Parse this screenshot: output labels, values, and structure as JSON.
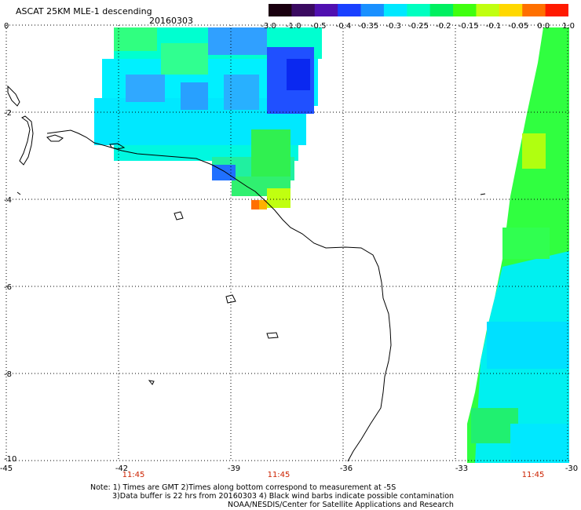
{
  "header": {
    "title": "ASCAT 25KM MLE-1 descending",
    "date": "20160303"
  },
  "colorbar": {
    "labels": [
      "-3.0",
      "-1.0",
      "-0.5",
      "-0.4",
      "-0.35",
      "-0.3",
      "-0.25",
      "-0.2",
      "-0.15",
      "-0.1",
      "-0.05",
      "0.0",
      "1.0"
    ],
    "colors": [
      "#1a0010",
      "#3a0a60",
      "#5010b0",
      "#1a40ff",
      "#1a90ff",
      "#00e8ff",
      "#00ffc0",
      "#00f060",
      "#40ff10",
      "#c0ff10",
      "#ffd800",
      "#ff7000",
      "#ff1a00"
    ]
  },
  "axes": {
    "x_ticks": [
      "-45",
      "-42",
      "-39",
      "-36",
      "-33",
      "-30"
    ],
    "y_ticks": [
      "0",
      "-2",
      "-4",
      "-6",
      "-8",
      "-10"
    ],
    "times": [
      "11:45",
      "11:45",
      "11:45"
    ]
  },
  "notes": {
    "line1": "Note: 1) Times are GMT 2)Times along bottom correspond to measurement at -5S",
    "line2": "3)Data buffer is 22 hrs from 20160303 4) Black wind barbs indicate possible contamination",
    "line3": "NOAA/NESDIS/Center for Satellite Applications and Research"
  }
}
